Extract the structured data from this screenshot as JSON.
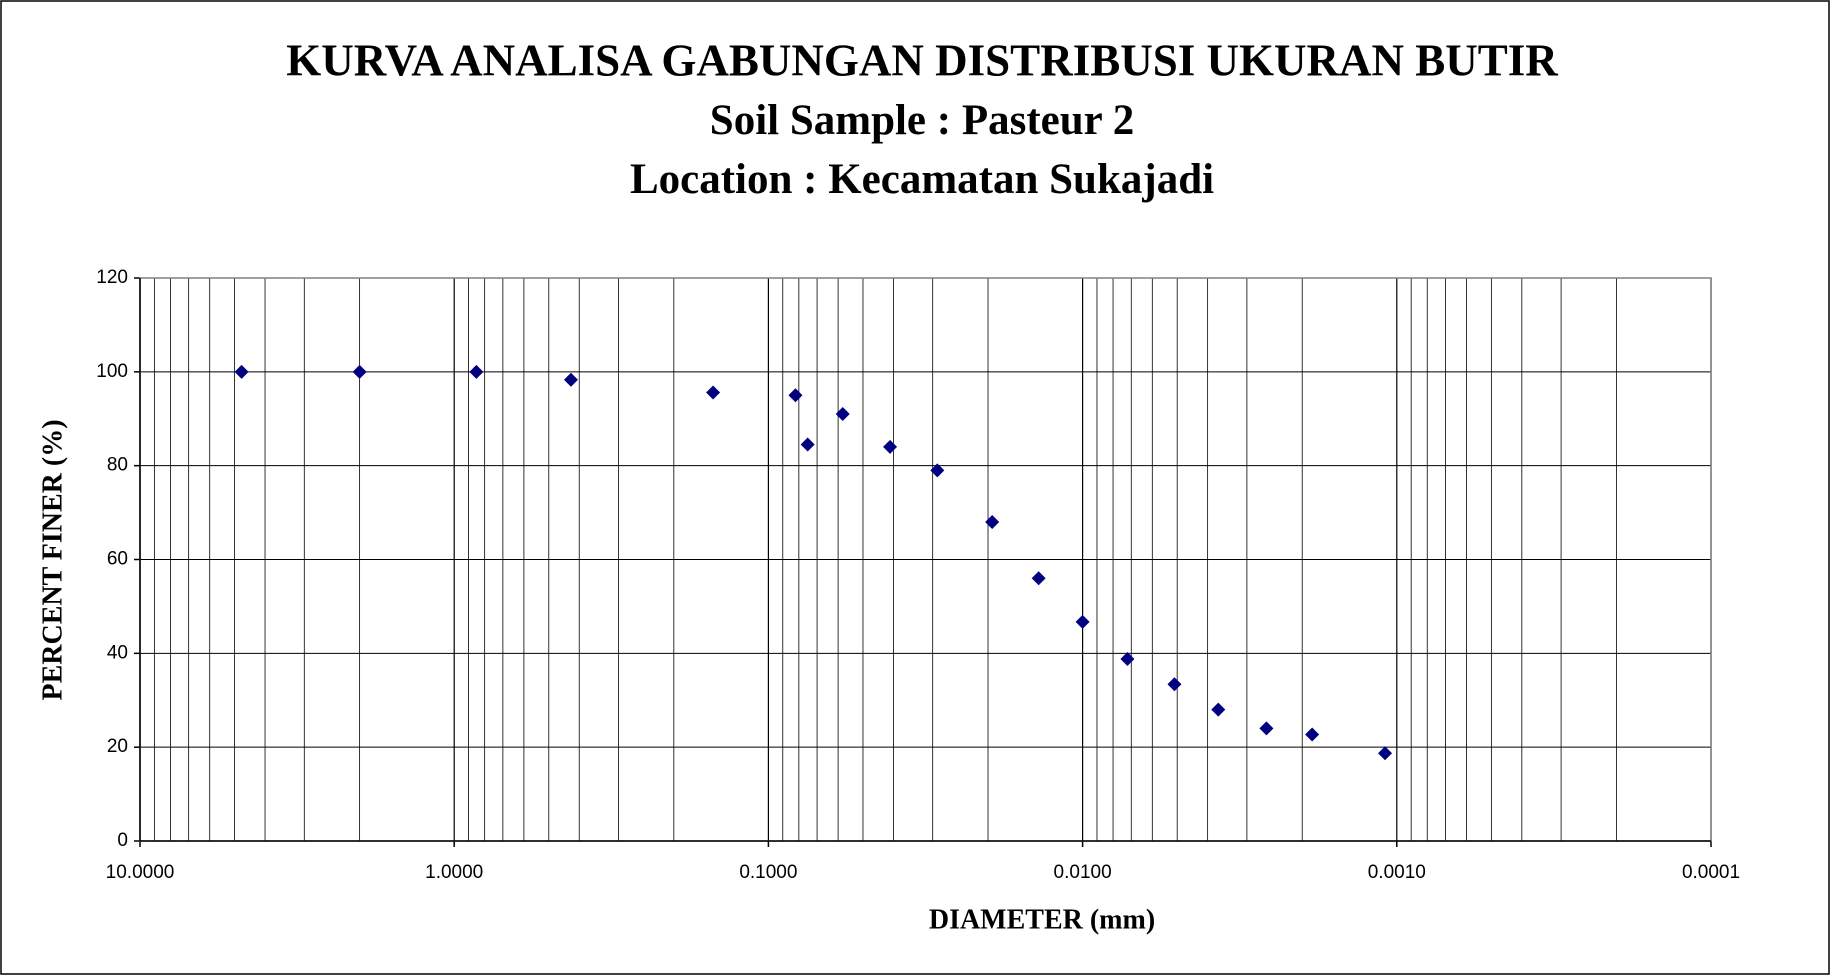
{
  "chart_data": {
    "type": "scatter",
    "title": "KURVA ANALISA GABUNGAN DISTRIBUSI  UKURAN  BUTIR",
    "subtitle": "Soil Sample : Pasteur 2",
    "subtitle2": "Location : Kecamatan Sukajadi",
    "xlabel": "DIAMETER (mm)",
    "ylabel": "PERCENT FINER (%)",
    "xscale": "log",
    "xlim": [
      10,
      0.0001
    ],
    "xticks": [
      {
        "value": 10,
        "label": "10.0000"
      },
      {
        "value": 1,
        "label": "1.0000"
      },
      {
        "value": 0.1,
        "label": "0.1000"
      },
      {
        "value": 0.01,
        "label": "0.0100"
      },
      {
        "value": 0.001,
        "label": "0.0010"
      },
      {
        "value": 0.0001,
        "label": "0.0001"
      }
    ],
    "ylim": [
      0,
      120
    ],
    "yticks": [
      0,
      20,
      40,
      60,
      80,
      100,
      120
    ],
    "grid": true,
    "series": [
      {
        "color": "#000080",
        "x": [
          4.75,
          2.0,
          0.85,
          0.425,
          0.15,
          0.082,
          0.075,
          0.058,
          0.041,
          0.029,
          0.0194,
          0.0138,
          0.01,
          0.0072,
          0.0051,
          0.0037,
          0.0026,
          0.00186,
          0.00109
        ],
        "values": [
          100,
          100,
          100,
          98.3,
          95.6,
          95,
          84.5,
          91,
          84,
          79,
          68,
          56,
          46.7,
          38.8,
          33.4,
          28,
          24,
          22.7,
          18.7
        ]
      }
    ]
  }
}
